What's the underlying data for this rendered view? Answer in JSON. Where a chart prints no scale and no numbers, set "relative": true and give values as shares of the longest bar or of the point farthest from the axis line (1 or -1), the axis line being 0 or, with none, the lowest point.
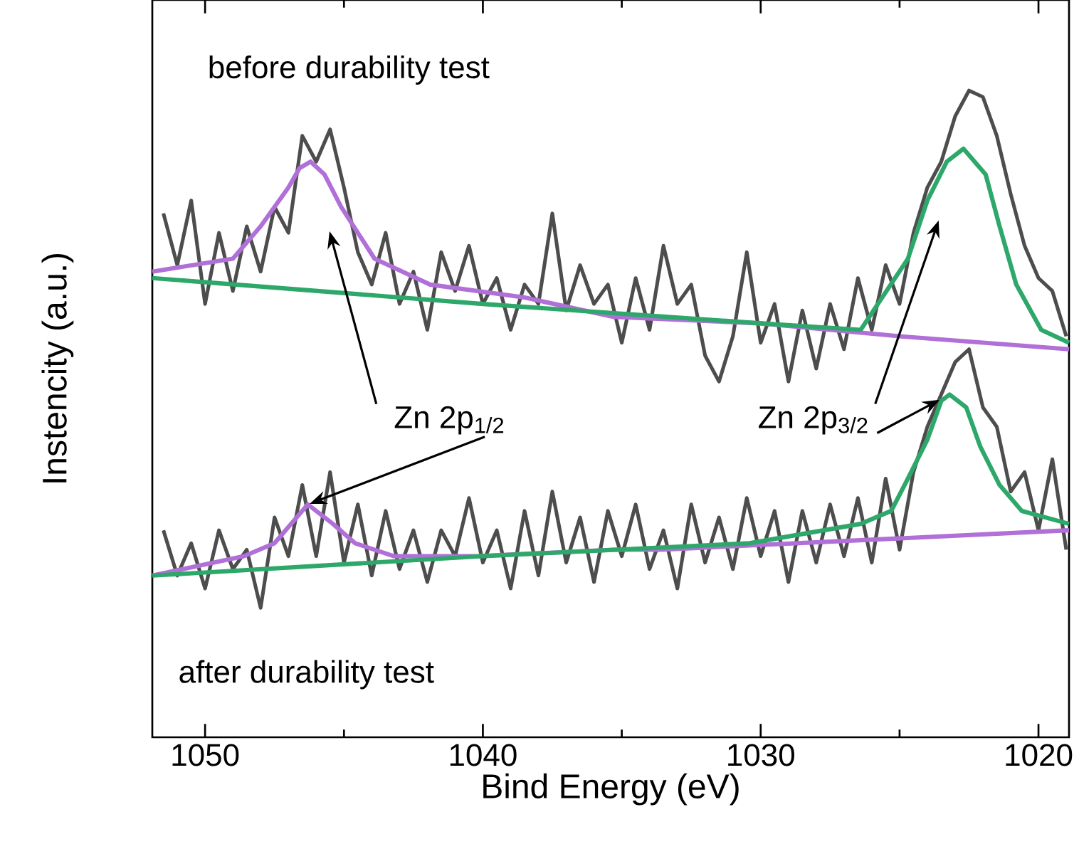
{
  "chart_data": {
    "type": "line",
    "xlabel": "Bind Energy (eV)",
    "ylabel": "Instencity (a.u.)",
    "relative": true,
    "xlim": [
      1051.9,
      1018.9
    ],
    "xticks": [
      1050,
      1040,
      1030,
      1020
    ],
    "x": [
      1051.5,
      1051,
      1050.5,
      1050,
      1049.5,
      1049,
      1048.5,
      1048,
      1047.5,
      1047,
      1046.5,
      1046,
      1045.5,
      1045,
      1044.5,
      1044,
      1043.5,
      1043,
      1042.5,
      1042,
      1041.5,
      1041,
      1040.5,
      1040,
      1039.5,
      1039,
      1038.5,
      1038,
      1037.5,
      1037,
      1036.5,
      1036,
      1035.5,
      1035,
      1034.5,
      1034,
      1033.5,
      1033,
      1032.5,
      1032,
      1031.5,
      1031,
      1030.5,
      1030,
      1029.5,
      1029,
      1028.5,
      1028,
      1027.5,
      1027,
      1026.5,
      1026,
      1025.5,
      1025,
      1024.5,
      1024,
      1023.5,
      1023,
      1022.5,
      1022,
      1021.5,
      1021,
      1020.5,
      1020,
      1019.5,
      1019
    ],
    "series": [
      {
        "color": "#4d4d4d",
        "values": [
          0.81,
          0.73,
          0.83,
          0.67,
          0.78,
          0.69,
          0.79,
          0.72,
          0.82,
          0.78,
          0.93,
          0.89,
          0.94,
          0.85,
          0.75,
          0.7,
          0.78,
          0.67,
          0.72,
          0.63,
          0.75,
          0.69,
          0.76,
          0.67,
          0.71,
          0.63,
          0.7,
          0.67,
          0.81,
          0.66,
          0.73,
          0.67,
          0.7,
          0.61,
          0.71,
          0.63,
          0.76,
          0.67,
          0.7,
          0.59,
          0.55,
          0.62,
          0.75,
          0.61,
          0.67,
          0.55,
          0.66,
          0.57,
          0.67,
          0.6,
          0.71,
          0.63,
          0.73,
          0.67,
          0.78,
          0.85,
          0.89,
          0.96,
          1.0,
          0.99,
          0.93,
          0.84,
          0.76,
          0.71,
          0.69,
          0.62
        ]
      },
      {
        "color": "#b070d8",
        "x": [
          1051.9,
          1049,
          1048,
          1047,
          1046.6,
          1046.2,
          1045.7,
          1045.1,
          1043.9,
          1041.9,
          1038.5,
          1035.3,
          1030,
          1025,
          1018.9
        ],
        "values": [
          0.72,
          0.74,
          0.79,
          0.85,
          0.88,
          0.89,
          0.87,
          0.82,
          0.74,
          0.7,
          0.68,
          0.65,
          0.64,
          0.62,
          0.6
        ]
      },
      {
        "color": "#2ea86a",
        "x": [
          1051.9,
          1040,
          1030,
          1026.4,
          1024.7,
          1024,
          1023.3,
          1022.7,
          1021.9,
          1021.4,
          1020.8,
          1019.9,
          1018.9
        ],
        "values": [
          0.71,
          0.67,
          0.64,
          0.63,
          0.74,
          0.83,
          0.89,
          0.91,
          0.87,
          0.79,
          0.7,
          0.63,
          0.61
        ]
      },
      {
        "color": "#4d4d4d",
        "values": [
          0.32,
          0.25,
          0.3,
          0.23,
          0.32,
          0.26,
          0.29,
          0.2,
          0.34,
          0.28,
          0.39,
          0.28,
          0.41,
          0.27,
          0.36,
          0.25,
          0.35,
          0.26,
          0.32,
          0.24,
          0.32,
          0.28,
          0.37,
          0.27,
          0.32,
          0.23,
          0.35,
          0.25,
          0.38,
          0.27,
          0.34,
          0.24,
          0.35,
          0.28,
          0.36,
          0.26,
          0.32,
          0.23,
          0.36,
          0.27,
          0.34,
          0.26,
          0.37,
          0.28,
          0.35,
          0.24,
          0.35,
          0.27,
          0.36,
          0.28,
          0.37,
          0.27,
          0.4,
          0.29,
          0.41,
          0.48,
          0.53,
          0.58,
          0.6,
          0.51,
          0.48,
          0.38,
          0.41,
          0.32,
          0.43,
          0.29
        ]
      },
      {
        "color": "#b070d8",
        "x": [
          1051.9,
          1048.6,
          1047.5,
          1046.9,
          1046.3,
          1045.4,
          1044.6,
          1043.2,
          1040.2,
          1035.3,
          1033.6,
          1018.9
        ],
        "values": [
          0.25,
          0.28,
          0.3,
          0.33,
          0.36,
          0.33,
          0.3,
          0.28,
          0.28,
          0.29,
          0.29,
          0.32
        ]
      },
      {
        "color": "#2ea86a",
        "x": [
          1051.9,
          1040,
          1030.4,
          1026.4,
          1025.3,
          1024.7,
          1024,
          1023.5,
          1023.2,
          1022.6,
          1022.1,
          1021.4,
          1020.6,
          1018.9
        ],
        "values": [
          0.25,
          0.28,
          0.3,
          0.33,
          0.35,
          0.4,
          0.46,
          0.52,
          0.53,
          0.51,
          0.45,
          0.39,
          0.35,
          0.33
        ]
      }
    ],
    "annotations": [
      "before durability test",
      "after durability test",
      "Zn 2p$_{1/2}$",
      "Zn 2p$_{3/2}$"
    ]
  }
}
